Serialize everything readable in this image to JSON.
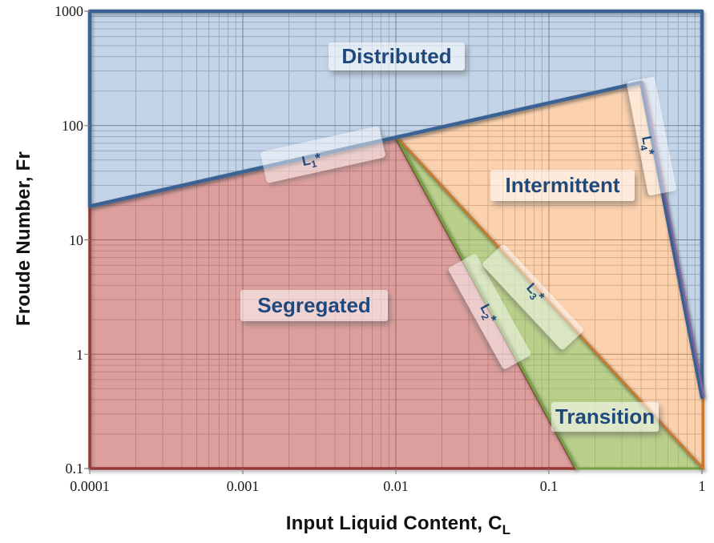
{
  "chart_data": {
    "type": "area",
    "plot_background": "#ffffff",
    "x_axis": {
      "title": "Input Liquid Content, C",
      "title_subscript": "L",
      "scale": "log",
      "min": 0.0001,
      "max": 1,
      "tick_labels": [
        "0.0001",
        "0.001",
        "0.01",
        "0.1",
        "1"
      ]
    },
    "y_axis": {
      "title": "Froude Number, Fr",
      "scale": "log",
      "min": 0.1,
      "max": 1000,
      "tick_labels": [
        "1000",
        "100",
        "10",
        "1",
        "0.1"
      ]
    },
    "grid": {
      "major_color": "#808080",
      "minor_color": "#bfbfbf",
      "minor_steps": [
        2,
        3,
        4,
        5,
        6,
        7,
        8,
        9
      ]
    },
    "regions": [
      {
        "label": "Segregated",
        "fill": "rgba(192,80,77,0.55)",
        "stroke": "#953735",
        "stroke_width": 3.5,
        "stroke_offset_x": 0,
        "points": [
          [
            0.0001,
            19.7
          ],
          [
            0.01,
            78.8
          ],
          [
            0.15,
            0.1
          ],
          [
            0.0001,
            0.1
          ]
        ]
      },
      {
        "label": "Transition",
        "fill": "rgba(155,187,89,0.70)",
        "stroke": "#70a33e",
        "stroke_width": 3,
        "stroke_offset_x": 1,
        "points": [
          [
            0.01,
            78.8
          ],
          [
            1,
            0.1
          ],
          [
            0.15,
            0.1
          ]
        ]
      },
      {
        "label": "Intermittent",
        "fill": "rgba(247,150,70,0.44)",
        "stroke": "#ca7a2f",
        "stroke_width": 3,
        "stroke_offset_x": 1.5,
        "points": [
          [
            0.01,
            78.8
          ],
          [
            0.4,
            239
          ],
          [
            1,
            0.42
          ],
          [
            1,
            0.1
          ]
        ]
      },
      {
        "label": "Distributed",
        "fill": "rgba(79,129,189,0.34)",
        "stroke": "#3a6295",
        "stroke_width": 4.5,
        "stroke_offset_x": 0,
        "points": [
          [
            0.0001,
            1000
          ],
          [
            1,
            1000
          ],
          [
            1,
            0.42
          ],
          [
            0.4,
            239
          ],
          [
            0.01,
            78.8
          ],
          [
            0.0001,
            19.7
          ]
        ]
      }
    ],
    "boundary_lines": [
      {
        "name": "L1",
        "points": [
          [
            0.0001,
            19.7
          ],
          [
            0.01,
            78.8
          ],
          [
            0.4,
            239
          ]
        ],
        "color": "#3a6295"
      },
      {
        "name": "L2",
        "points": [
          [
            0.01,
            78.8
          ],
          [
            0.15,
            0.1
          ]
        ],
        "color": "#953735"
      },
      {
        "name": "L3",
        "points": [
          [
            0.01,
            78.8
          ],
          [
            1,
            0.1
          ]
        ],
        "color": "#ca7a2f"
      },
      {
        "name": "L4",
        "points": [
          [
            0.4,
            239
          ],
          [
            1,
            0.42
          ]
        ],
        "color": "#8064a2"
      }
    ],
    "extra_line": {
      "name": "L4-series",
      "color": "#8064a2",
      "width": 2.5,
      "offset_x": 2.5,
      "points": [
        [
          0.4,
          239
        ],
        [
          1,
          0.42
        ]
      ]
    },
    "boundary_labels": [
      {
        "base": "L",
        "sub": "1",
        "star": "*"
      },
      {
        "base": "L",
        "sub": "2",
        "star": "*"
      },
      {
        "base": "L",
        "sub": "3",
        "star": "*"
      },
      {
        "base": "L",
        "sub": "4",
        "star": "*"
      }
    ]
  }
}
